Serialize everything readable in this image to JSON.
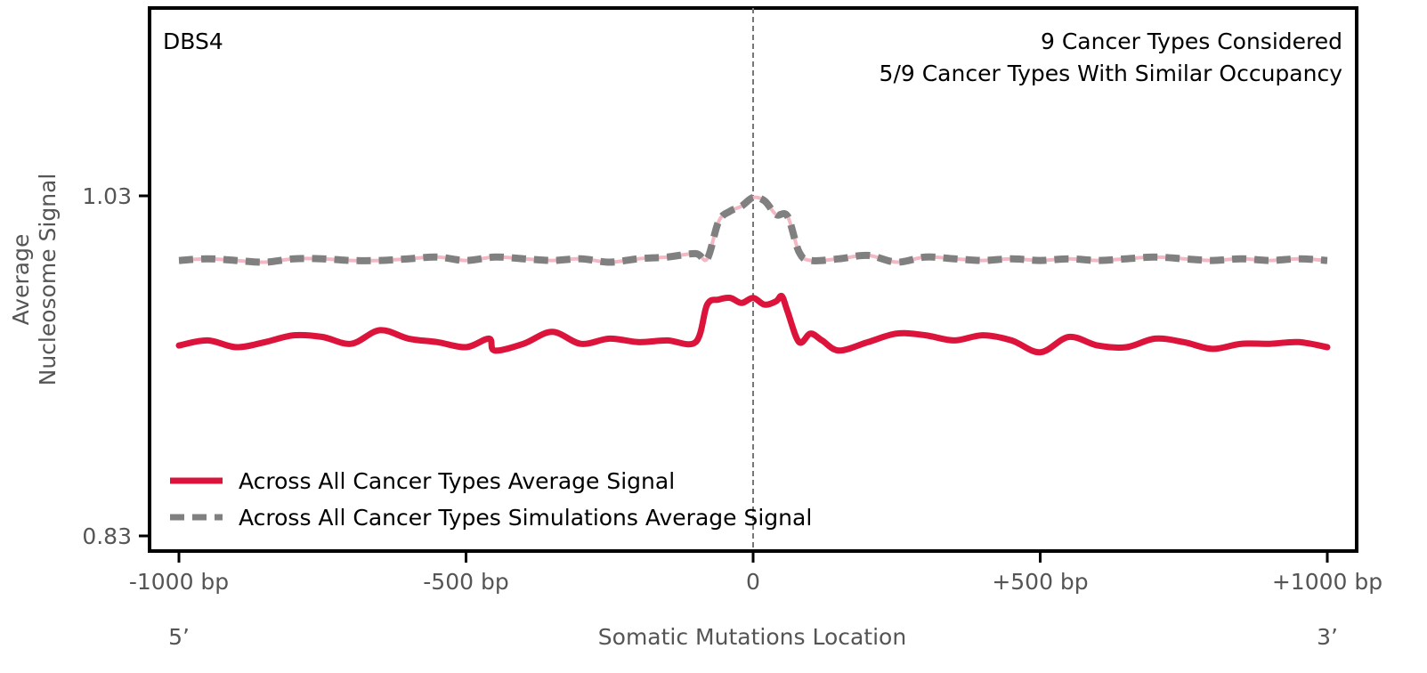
{
  "chart_data": {
    "type": "line",
    "signature_label": "DBS4",
    "annotations": [
      "9 Cancer Types Considered",
      "5/9 Cancer Types With Similar Occupancy"
    ],
    "ylabel_lines": [
      "Average",
      "Nucleosome Signal"
    ],
    "xlabel": "Somatic Mutations Location",
    "x_end_labels": {
      "left": "5’",
      "right": "3’"
    },
    "xlim": [
      -1000,
      1000
    ],
    "ylim": [
      0.83,
      1.03
    ],
    "x_ticks": [
      {
        "value": -1000,
        "label": "-1000 bp"
      },
      {
        "value": -500,
        "label": "-500 bp"
      },
      {
        "value": 0,
        "label": "0"
      },
      {
        "value": 500,
        "label": "+500 bp"
      },
      {
        "value": 1000,
        "label": "+1000 bp"
      }
    ],
    "y_ticks": [
      {
        "value": 1.03,
        "label": "1.03"
      },
      {
        "value": 0.83,
        "label": "0.83"
      }
    ],
    "vline_x": 0,
    "legend_position": "lower-left",
    "series": [
      {
        "name": "Across All Cancer Types Average Signal",
        "color": "#dc143c",
        "style": "solid",
        "x": [
          -1000,
          -950,
          -900,
          -850,
          -800,
          -750,
          -700,
          -650,
          -600,
          -550,
          -500,
          -460,
          -450,
          -400,
          -350,
          -300,
          -250,
          -200,
          -150,
          -100,
          -80,
          -60,
          -40,
          -20,
          0,
          20,
          40,
          50,
          60,
          80,
          100,
          120,
          150,
          200,
          250,
          300,
          350,
          400,
          450,
          500,
          550,
          600,
          650,
          700,
          750,
          800,
          850,
          900,
          950,
          1000
        ],
        "values": [
          0.942,
          0.945,
          0.941,
          0.944,
          0.948,
          0.947,
          0.943,
          0.951,
          0.946,
          0.944,
          0.941,
          0.946,
          0.939,
          0.943,
          0.95,
          0.943,
          0.946,
          0.944,
          0.945,
          0.944,
          0.966,
          0.969,
          0.97,
          0.967,
          0.97,
          0.966,
          0.968,
          0.971,
          0.962,
          0.944,
          0.949,
          0.945,
          0.939,
          0.944,
          0.949,
          0.948,
          0.945,
          0.948,
          0.945,
          0.938,
          0.947,
          0.942,
          0.941,
          0.946,
          0.944,
          0.94,
          0.943,
          0.943,
          0.944,
          0.941
        ]
      },
      {
        "name": "Across All Cancer Types Simulations Average Signal",
        "color": "#808080",
        "style": "dashed",
        "x": [
          -1000,
          -950,
          -900,
          -850,
          -800,
          -750,
          -700,
          -650,
          -600,
          -550,
          -500,
          -450,
          -400,
          -350,
          -300,
          -250,
          -200,
          -150,
          -100,
          -80,
          -60,
          -40,
          -20,
          0,
          20,
          40,
          60,
          80,
          100,
          150,
          200,
          250,
          300,
          350,
          400,
          450,
          500,
          550,
          600,
          650,
          700,
          750,
          800,
          850,
          900,
          950,
          1000
        ],
        "values": [
          0.992,
          0.993,
          0.992,
          0.991,
          0.993,
          0.993,
          0.992,
          0.992,
          0.993,
          0.994,
          0.992,
          0.994,
          0.993,
          0.992,
          0.993,
          0.991,
          0.993,
          0.994,
          0.996,
          0.993,
          1.015,
          1.021,
          1.024,
          1.029,
          1.027,
          1.019,
          1.018,
          0.997,
          0.992,
          0.993,
          0.995,
          0.991,
          0.994,
          0.993,
          0.992,
          0.993,
          0.992,
          0.993,
          0.992,
          0.993,
          0.994,
          0.993,
          0.992,
          0.993,
          0.992,
          0.993,
          0.992
        ]
      }
    ]
  }
}
